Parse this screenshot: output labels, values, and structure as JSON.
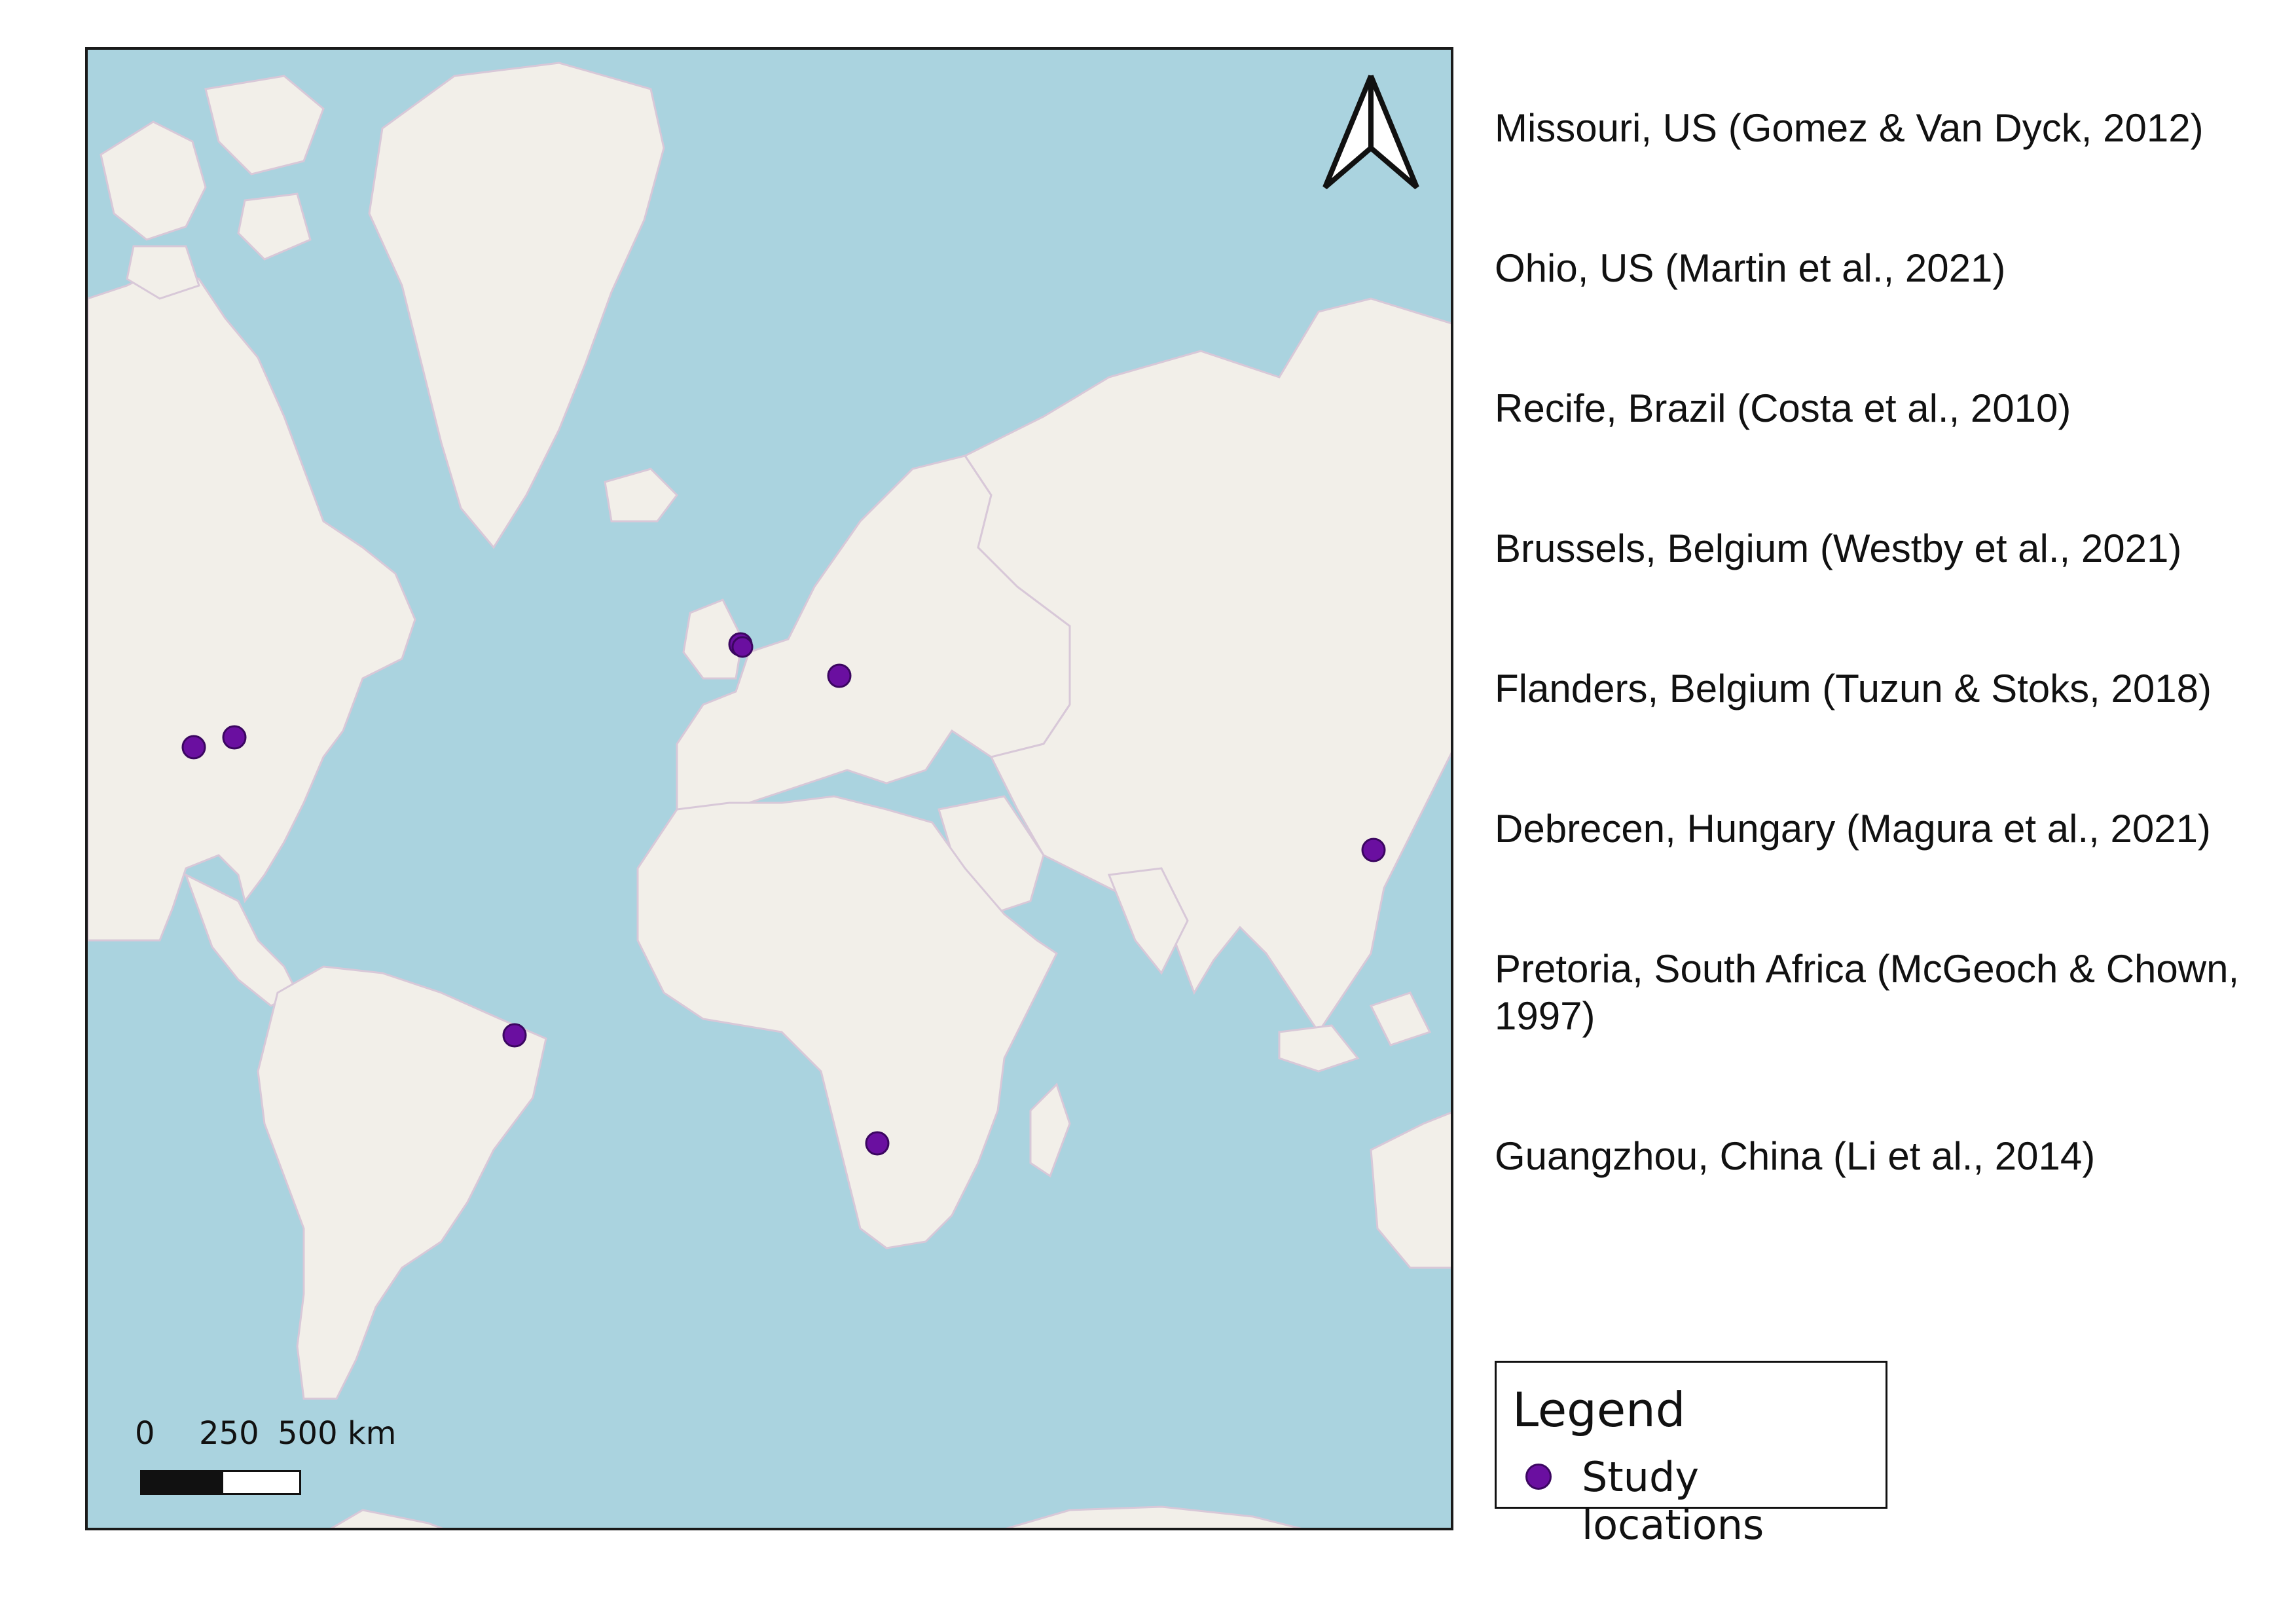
{
  "colors": {
    "ocean": "#aad3df",
    "land": "#f2efe9",
    "marker": "#6a0fa0",
    "border": "#c9a9c9"
  },
  "north_arrow": {
    "icon": "north-arrow-icon"
  },
  "scale_bar": {
    "labels": [
      "0",
      "250",
      "500 km"
    ]
  },
  "locations": [
    "Missouri, US (Gomez & Van Dyck, 2012)",
    "Ohio, US (Martin et al., 2021)",
    "Recife, Brazil (Costa et al., 2010)",
    "Brussels, Belgium (Westby et al., 2021)",
    "Flanders, Belgium (Tuzun & Stoks, 2018)",
    "Debrecen, Hungary (Magura et al., 2021)",
    "Pretoria, South Africa (McGeoch & Chown, 1997)",
    "Guangzhou, China (Li et al., 2014)"
  ],
  "legend": {
    "title": "Legend",
    "item_label": "Study locations",
    "item_icon": "circle-marker-icon"
  }
}
